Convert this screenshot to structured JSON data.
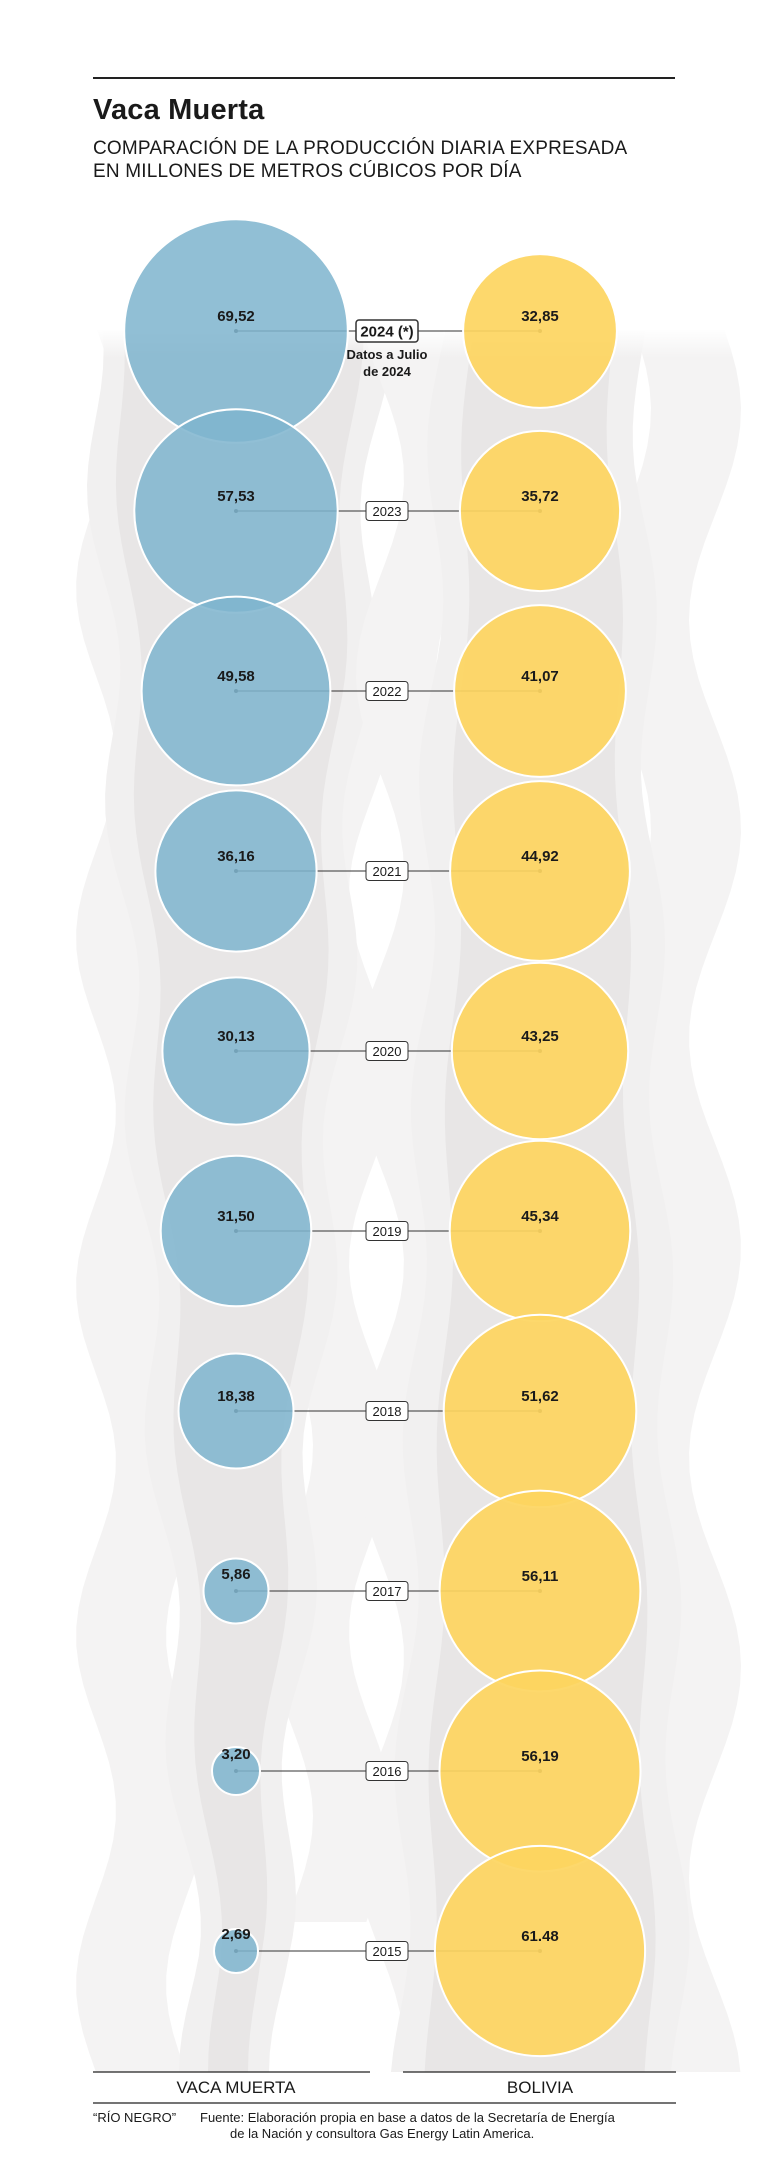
{
  "header": {
    "title": "Vaca Muerta",
    "subtitle_line1": "COMPARACIÓN DE LA PRODUCCIÓN DIARIA EXPRESADA",
    "subtitle_line2": "EN MILLONES DE METROS CÚBICOS POR DÍA"
  },
  "chart_data": {
    "type": "bubble",
    "title": "Vaca Muerta",
    "subtitle": "COMPARACIÓN DE LA PRODUCCIÓN DIARIA EXPRESADA EN MILLONES DE METROS CÚBICOS POR DÍA",
    "unit": "millones de m³ por día",
    "categories": [
      "2024 (*)",
      "2023",
      "2022",
      "2021",
      "2020",
      "2019",
      "2018",
      "2017",
      "2016",
      "2015"
    ],
    "series": [
      {
        "name": "VACA MUERTA",
        "color": "#7fb5ce",
        "values": [
          69.52,
          57.53,
          49.58,
          36.16,
          30.13,
          31.5,
          18.38,
          5.86,
          3.2,
          2.69
        ],
        "labels": [
          "69,52",
          "57,53",
          "49,58",
          "36,16",
          "30,13",
          "31,50",
          "18,38",
          "5,86",
          "3,20",
          "2,69"
        ]
      },
      {
        "name": "BOLIVIA",
        "color": "#fdd55f",
        "values": [
          32.85,
          35.72,
          41.07,
          44.92,
          43.25,
          45.34,
          51.62,
          56.11,
          56.19,
          61.48
        ],
        "labels": [
          "32,85",
          "35,72",
          "41,07",
          "44,92",
          "43,25",
          "45,34",
          "51,62",
          "56,11",
          "56,19",
          "61.48"
        ]
      }
    ],
    "annotation_line1": "Datos a Julio",
    "annotation_line2": "de 2024",
    "background_color": "#e8e6e6",
    "legend": "none"
  },
  "footer": {
    "credit": "“RÍO NEGRO”",
    "source_line1": "Fuente: Elaboración propia en base a datos de la Secretaría de Energía",
    "source_line2": "de la Nación y consultora Gas Energy Latin America."
  }
}
